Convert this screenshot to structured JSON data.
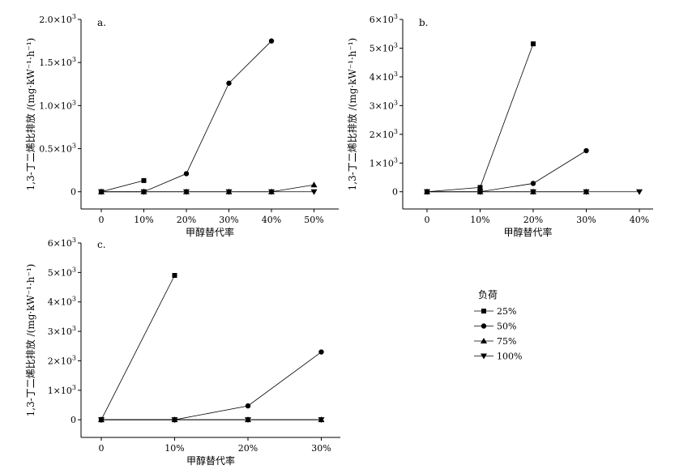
{
  "legend": {
    "title": "负荷",
    "placement": "right-middle",
    "entries": [
      {
        "name": "25%",
        "marker": "square"
      },
      {
        "name": "50%",
        "marker": "circle"
      },
      {
        "name": "75%",
        "marker": "triangle-up"
      },
      {
        "name": "100%",
        "marker": "triangle-down"
      }
    ]
  },
  "chart_data": [
    {
      "type": "line",
      "panel_label": "a.",
      "xlabel": "甲醇替代率",
      "ylabel": "1,3-丁二烯比排放 /(mg·kW⁻¹·h⁻¹)",
      "categories": [
        "0",
        "10%",
        "20%",
        "30%",
        "40%",
        "50%"
      ],
      "ylim": [
        -200,
        2000
      ],
      "yticks": [
        {
          "value": 0,
          "label": "0",
          "exp": ""
        },
        {
          "value": 500,
          "label": "0.5×10",
          "exp": "3"
        },
        {
          "value": 1000,
          "label": "1.0×10",
          "exp": "3"
        },
        {
          "value": 1500,
          "label": "1.5×10",
          "exp": "3"
        },
        {
          "value": 2000,
          "label": "2.0×10",
          "exp": "3"
        }
      ],
      "series": [
        {
          "name": "25%",
          "x": [
            0,
            1
          ],
          "values": [
            0,
            130
          ]
        },
        {
          "name": "50%",
          "x": [
            0,
            1,
            2,
            3,
            4
          ],
          "values": [
            0,
            0,
            210,
            1260,
            1750
          ]
        },
        {
          "name": "75%",
          "x": [
            0,
            1,
            2,
            3,
            4,
            5
          ],
          "values": [
            0,
            0,
            0,
            0,
            0,
            80
          ]
        },
        {
          "name": "100%",
          "x": [
            0,
            1,
            2,
            3,
            4,
            5
          ],
          "values": [
            0,
            0,
            0,
            0,
            0,
            0
          ]
        }
      ]
    },
    {
      "type": "line",
      "panel_label": "b.",
      "xlabel": "甲醇替代率",
      "ylabel": "1,3-丁二烯比排放 /(mg·kW⁻¹·h⁻¹)",
      "categories": [
        "0",
        "10%",
        "20%",
        "30%",
        "40%"
      ],
      "ylim": [
        -600,
        6000
      ],
      "yticks": [
        {
          "value": 0,
          "label": "0",
          "exp": ""
        },
        {
          "value": 1000,
          "label": "1×10",
          "exp": "3"
        },
        {
          "value": 2000,
          "label": "2×10",
          "exp": "3"
        },
        {
          "value": 3000,
          "label": "3×10",
          "exp": "3"
        },
        {
          "value": 4000,
          "label": "4×10",
          "exp": "3"
        },
        {
          "value": 5000,
          "label": "5×10",
          "exp": "3"
        },
        {
          "value": 6000,
          "label": "6×10",
          "exp": "3"
        }
      ],
      "series": [
        {
          "name": "25%",
          "x": [
            0,
            1,
            2
          ],
          "values": [
            0,
            150,
            5150
          ]
        },
        {
          "name": "50%",
          "x": [
            0,
            1,
            2,
            3
          ],
          "values": [
            0,
            0,
            290,
            1430
          ]
        },
        {
          "name": "75%",
          "x": [
            0,
            1,
            2,
            3
          ],
          "values": [
            0,
            0,
            0,
            0
          ]
        },
        {
          "name": "100%",
          "x": [
            0,
            1,
            2,
            3,
            4
          ],
          "values": [
            0,
            0,
            0,
            0,
            0
          ]
        }
      ]
    },
    {
      "type": "line",
      "panel_label": "c.",
      "xlabel": "甲醇替代率",
      "ylabel": "1,3-丁二烯比排放 /(mg·kW⁻¹·h⁻¹)",
      "categories": [
        "0",
        "10%",
        "20%",
        "30%"
      ],
      "ylim": [
        -600,
        6000
      ],
      "yticks": [
        {
          "value": 0,
          "label": "0",
          "exp": ""
        },
        {
          "value": 1000,
          "label": "1×10",
          "exp": "3"
        },
        {
          "value": 2000,
          "label": "2×10",
          "exp": "3"
        },
        {
          "value": 3000,
          "label": "3×10",
          "exp": "3"
        },
        {
          "value": 4000,
          "label": "4×10",
          "exp": "3"
        },
        {
          "value": 5000,
          "label": "5×10",
          "exp": "3"
        },
        {
          "value": 6000,
          "label": "6×10",
          "exp": "3"
        }
      ],
      "series": [
        {
          "name": "25%",
          "x": [
            0,
            1
          ],
          "values": [
            0,
            4900
          ]
        },
        {
          "name": "50%",
          "x": [
            0,
            1,
            2,
            3
          ],
          "values": [
            0,
            0,
            470,
            2300
          ]
        },
        {
          "name": "75%",
          "x": [
            0,
            1,
            2,
            3
          ],
          "values": [
            0,
            0,
            0,
            0
          ]
        },
        {
          "name": "100%",
          "x": [
            0,
            1,
            2,
            3
          ],
          "values": [
            0,
            0,
            0,
            0
          ]
        }
      ]
    }
  ]
}
